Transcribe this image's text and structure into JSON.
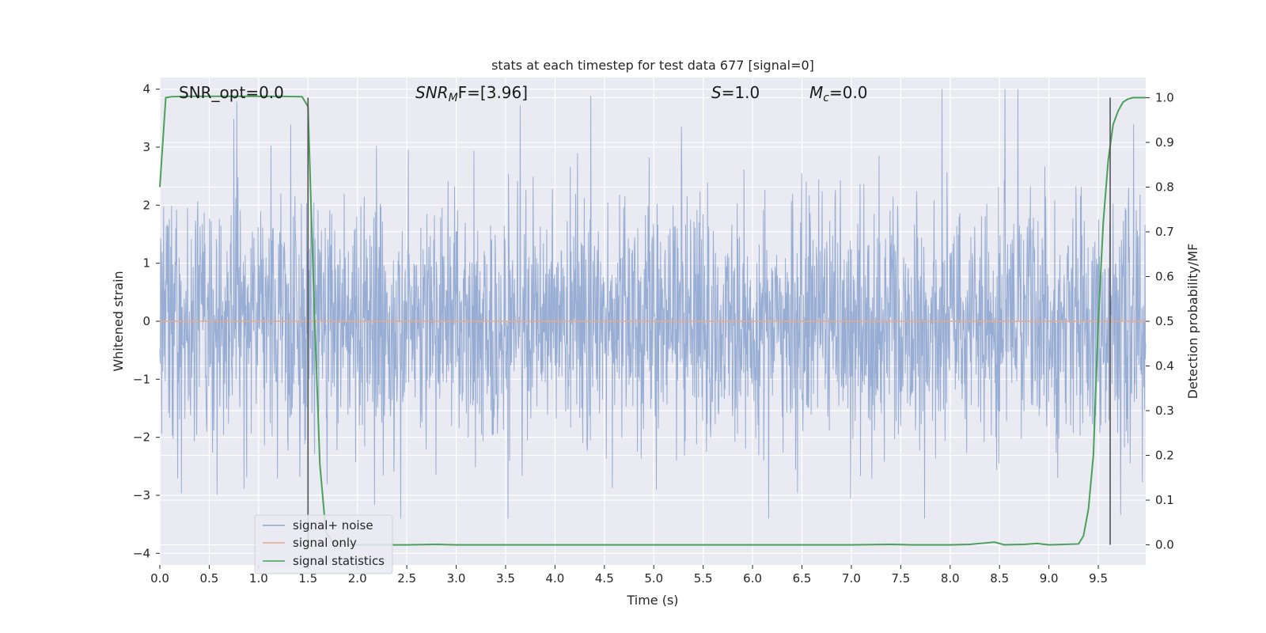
{
  "chart_data": {
    "type": "line",
    "title": "stats at each timestep for test data 677 [signal=0]",
    "xlabel": "Time (s)",
    "ylabel_left": "Whitened strain",
    "ylabel_right": "Detection probability/MF",
    "xlim": [
      0.0,
      9.98
    ],
    "ylim_left": [
      -4.2,
      4.2
    ],
    "ylim_right": [
      -0.045,
      1.045
    ],
    "x_ticks": [
      "0.0",
      "0.5",
      "1.0",
      "1.5",
      "2.0",
      "2.5",
      "3.0",
      "3.5",
      "4.0",
      "4.5",
      "5.0",
      "5.5",
      "6.0",
      "6.5",
      "7.0",
      "7.5",
      "8.0",
      "8.5",
      "9.0",
      "9.5"
    ],
    "x_tick_values": [
      0.0,
      0.5,
      1.0,
      1.5,
      2.0,
      2.5,
      3.0,
      3.5,
      4.0,
      4.5,
      5.0,
      5.5,
      6.0,
      6.5,
      7.0,
      7.5,
      8.0,
      8.5,
      9.0,
      9.5
    ],
    "y_left_ticks": [
      "−4",
      "−3",
      "−2",
      "−1",
      "0",
      "1",
      "2",
      "3",
      "4"
    ],
    "y_left_tick_values": [
      -4,
      -3,
      -2,
      -1,
      0,
      1,
      2,
      3,
      4
    ],
    "y_right_ticks": [
      "0.0",
      "0.1",
      "0.2",
      "0.3",
      "0.4",
      "0.5",
      "0.6",
      "0.7",
      "0.8",
      "0.9",
      "1.0"
    ],
    "y_right_tick_values": [
      0.0,
      0.1,
      0.2,
      0.3,
      0.4,
      0.5,
      0.6,
      0.7,
      0.8,
      0.9,
      1.0
    ],
    "grid": true,
    "legend_position": "lower-left",
    "annotations": {
      "snr_opt": "SNR_opt=0.0",
      "snr_mf_italic": "SNR",
      "snr_mf_sub": "M",
      "snr_mf_tail": "F=[3.96]",
      "s_italic": "S",
      "s_tail": "=1.0",
      "mc_italic": "M",
      "mc_sub": "c",
      "mc_tail": "=0.0"
    },
    "vertical_lines_x": [
      1.5,
      9.62
    ],
    "series": [
      {
        "name": "signal+ noise",
        "color": "#8fa6cf",
        "axis": "left",
        "kind": "noise-trace",
        "noise_envelope": [
          -3.4,
          4.0
        ],
        "noise_seed": 677
      },
      {
        "name": "signal only",
        "color": "#e8a888",
        "axis": "left",
        "x": [
          0.0,
          9.98
        ],
        "y": [
          0.0,
          0.0
        ]
      },
      {
        "name": "signal statistics",
        "color": "#4aa05a",
        "axis": "right",
        "x": [
          0.0,
          0.06,
          0.12,
          0.3,
          0.6,
          0.9,
          1.2,
          1.44,
          1.5,
          1.56,
          1.62,
          1.68,
          1.75,
          1.85,
          2.0,
          2.5,
          2.8,
          3.0,
          4.0,
          5.0,
          6.0,
          7.0,
          7.4,
          7.6,
          8.0,
          8.2,
          8.35,
          8.45,
          8.55,
          8.75,
          8.88,
          9.0,
          9.3,
          9.35,
          9.4,
          9.45,
          9.5,
          9.55,
          9.6,
          9.65,
          9.7,
          9.75,
          9.8,
          9.85,
          9.9,
          9.98
        ],
        "y": [
          0.8,
          1.0,
          1.002,
          1.003,
          1.003,
          1.003,
          1.003,
          1.002,
          0.98,
          0.55,
          0.18,
          0.03,
          0.005,
          0.001,
          0.0,
          0.0,
          0.001,
          0.0,
          0.0,
          0.0,
          0.0,
          0.0,
          0.001,
          0.0,
          0.0,
          0.001,
          0.004,
          0.006,
          0.0,
          0.001,
          0.003,
          0.0,
          0.002,
          0.02,
          0.08,
          0.2,
          0.5,
          0.72,
          0.86,
          0.94,
          0.97,
          0.99,
          0.997,
          1.0,
          1.0,
          1.0
        ]
      }
    ]
  }
}
